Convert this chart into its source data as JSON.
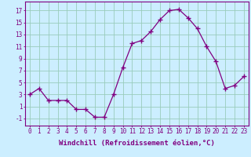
{
  "x": [
    0,
    1,
    2,
    3,
    4,
    5,
    6,
    7,
    8,
    9,
    10,
    11,
    12,
    13,
    14,
    15,
    16,
    17,
    18,
    19,
    20,
    21,
    22,
    23
  ],
  "y": [
    3,
    4,
    2,
    2,
    2,
    0.5,
    0.5,
    -0.8,
    -0.8,
    3,
    7.5,
    11.5,
    12,
    13.5,
    15.5,
    17,
    17.2,
    15.8,
    14,
    11,
    8.5,
    4,
    4.5,
    6
  ],
  "line_color": "#800080",
  "marker": "+",
  "marker_size": 4,
  "bg_color": "#cceeff",
  "grid_color": "#99ccbb",
  "xlabel": "Windchill (Refroidissement éolien,°C)",
  "xlabel_fontsize": 6.5,
  "ylabel_ticks": [
    -1,
    1,
    3,
    5,
    7,
    9,
    11,
    13,
    15,
    17
  ],
  "xlim": [
    -0.5,
    23.5
  ],
  "ylim": [
    -2.2,
    18.5
  ],
  "xtick_labels": [
    "0",
    "1",
    "2",
    "3",
    "4",
    "5",
    "6",
    "7",
    "8",
    "9",
    "10",
    "11",
    "12",
    "13",
    "14",
    "15",
    "16",
    "17",
    "18",
    "19",
    "20",
    "21",
    "22",
    "23"
  ],
  "tick_fontsize": 5.5,
  "label_color": "#800080"
}
